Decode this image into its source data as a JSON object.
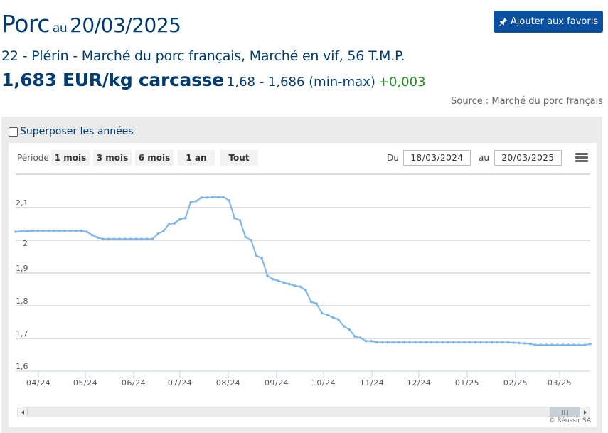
{
  "header": {
    "commodity": "Porc",
    "au": "au",
    "date": "20/03/2025",
    "favorite_button": "Ajouter aux favoris",
    "market_description": "22 - Plérin - Marché du porc français, Marché en vif, 56 T.M.P.",
    "price": "1,683 EUR/kg carcasse",
    "range": "1,68 - 1,686 (min-max)",
    "change": "+0,003",
    "source": "Source : Marché du porc français"
  },
  "controls": {
    "overlay_years_label": "Superposer les années",
    "overlay_years_checked": false,
    "period_label": "Période",
    "period_buttons": [
      "1 mois",
      "3 mois",
      "6 mois",
      "1 an",
      "Tout"
    ],
    "from_label": "Du",
    "from_date": "18/03/2024",
    "to_label": "au",
    "to_date": "20/03/2025"
  },
  "footer": {
    "credit": "© Réussir SA"
  },
  "colors": {
    "title": "#003c71",
    "button_bg": "#0b4f9f",
    "change_positive": "#1e8c1e",
    "line": "#7cb5ec"
  },
  "chart_data": {
    "type": "line",
    "title": "",
    "xlabel": "",
    "ylabel": "",
    "ylim": [
      1.6,
      2.15
    ],
    "yticks": [
      "1,6",
      "1,7",
      "1,8",
      "1,9",
      "2",
      "2,1"
    ],
    "xticks": [
      "04/24",
      "05/24",
      "06/24",
      "07/24",
      "08/24",
      "09/24",
      "10/24",
      "11/24",
      "12/24",
      "01/25",
      "02/25",
      "03/25"
    ],
    "grid": true,
    "legend": false,
    "series": [
      {
        "name": "Porc EUR/kg carcasse",
        "x": [
          "18/03/2024",
          "21/03/2024",
          "25/03/2024",
          "28/03/2024",
          "01/04/2024",
          "04/04/2024",
          "08/04/2024",
          "11/04/2024",
          "15/04/2024",
          "18/04/2024",
          "22/04/2024",
          "25/04/2024",
          "29/04/2024",
          "02/05/2024",
          "06/05/2024",
          "09/05/2024",
          "13/05/2024",
          "16/05/2024",
          "20/05/2024",
          "23/05/2024",
          "27/05/2024",
          "30/05/2024",
          "03/06/2024",
          "06/06/2024",
          "10/06/2024",
          "13/06/2024",
          "17/06/2024",
          "20/06/2024",
          "24/06/2024",
          "27/06/2024",
          "01/07/2024",
          "04/07/2024",
          "08/07/2024",
          "11/07/2024",
          "15/07/2024",
          "18/07/2024",
          "22/07/2024",
          "25/07/2024",
          "29/07/2024",
          "01/08/2024",
          "05/08/2024",
          "08/08/2024",
          "12/08/2024",
          "15/08/2024",
          "19/08/2024",
          "22/08/2024",
          "26/08/2024",
          "29/08/2024",
          "02/09/2024",
          "05/09/2024",
          "09/09/2024",
          "12/09/2024",
          "16/09/2024",
          "19/09/2024",
          "23/09/2024",
          "26/09/2024",
          "30/09/2024",
          "03/10/2024",
          "07/10/2024",
          "10/10/2024",
          "14/10/2024",
          "17/10/2024",
          "21/10/2024",
          "24/10/2024",
          "28/10/2024",
          "31/10/2024",
          "04/11/2024",
          "07/11/2024",
          "11/11/2024",
          "14/11/2024",
          "18/11/2024",
          "21/11/2024",
          "25/11/2024",
          "28/11/2024",
          "02/12/2024",
          "05/12/2024",
          "09/12/2024",
          "12/12/2024",
          "16/12/2024",
          "19/12/2024",
          "23/12/2024",
          "26/12/2024",
          "30/12/2024",
          "02/01/2025",
          "06/01/2025",
          "09/01/2025",
          "13/01/2025",
          "16/01/2025",
          "20/01/2025",
          "23/01/2025",
          "27/01/2025",
          "30/01/2025",
          "03/02/2025",
          "06/02/2025",
          "10/02/2025",
          "13/02/2025",
          "17/02/2025",
          "20/02/2025",
          "24/02/2025",
          "27/02/2025",
          "03/03/2025",
          "06/03/2025",
          "10/03/2025",
          "13/03/2025",
          "17/03/2025",
          "20/03/2025"
        ],
        "values": [
          2.026,
          2.028,
          2.028,
          2.029,
          2.029,
          2.029,
          2.029,
          2.029,
          2.029,
          2.029,
          2.029,
          2.029,
          2.029,
          2.026,
          2.016,
          2.008,
          2.004,
          2.004,
          2.004,
          2.004,
          2.004,
          2.004,
          2.004,
          2.004,
          2.004,
          2.004,
          2.02,
          2.028,
          2.05,
          2.052,
          2.064,
          2.068,
          2.117,
          2.12,
          2.131,
          2.131,
          2.132,
          2.132,
          2.132,
          2.122,
          2.068,
          2.061,
          2.01,
          2.001,
          1.953,
          1.945,
          1.892,
          1.881,
          1.876,
          1.871,
          1.866,
          1.861,
          1.858,
          1.848,
          1.812,
          1.806,
          1.777,
          1.772,
          1.764,
          1.758,
          1.737,
          1.727,
          1.706,
          1.702,
          1.692,
          1.692,
          1.688,
          1.688,
          1.688,
          1.688,
          1.688,
          1.688,
          1.688,
          1.688,
          1.688,
          1.688,
          1.688,
          1.688,
          1.688,
          1.688,
          1.688,
          1.688,
          1.688,
          1.688,
          1.688,
          1.688,
          1.688,
          1.688,
          1.688,
          1.688,
          1.688,
          1.687,
          1.686,
          1.685,
          1.684,
          1.68,
          1.68,
          1.68,
          1.68,
          1.68,
          1.68,
          1.68,
          1.68,
          1.68,
          1.68,
          1.683
        ]
      }
    ]
  }
}
